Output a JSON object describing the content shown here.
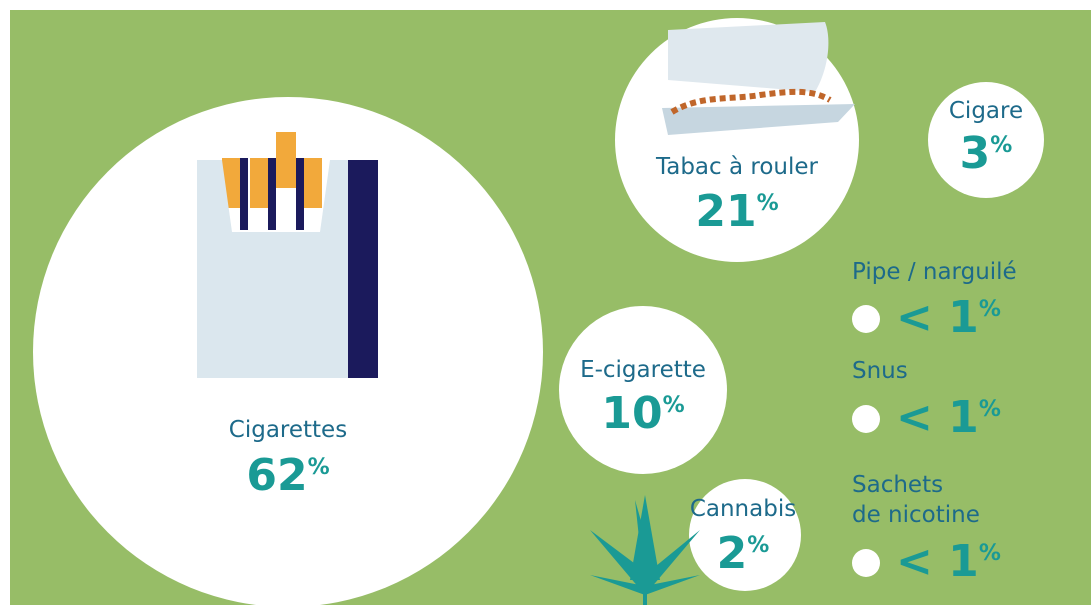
{
  "items": [
    {
      "label": "Cigarettes",
      "value": "62",
      "unit": "%"
    },
    {
      "label": "Tabac à rouler",
      "value": "21",
      "unit": "%"
    },
    {
      "label": "Cigare",
      "value": "3",
      "unit": "%"
    },
    {
      "label": "E-cigarette",
      "value": "10",
      "unit": "%"
    },
    {
      "label": "Cannabis",
      "value": "2",
      "unit": "%"
    },
    {
      "label": "Pipe / narguilé",
      "value": "< 1",
      "unit": "%"
    },
    {
      "label": "Snus",
      "value": "< 1",
      "unit": "%"
    },
    {
      "label": [
        "Sachets",
        "de nicotine"
      ],
      "value": "< 1",
      "unit": "%"
    }
  ]
}
